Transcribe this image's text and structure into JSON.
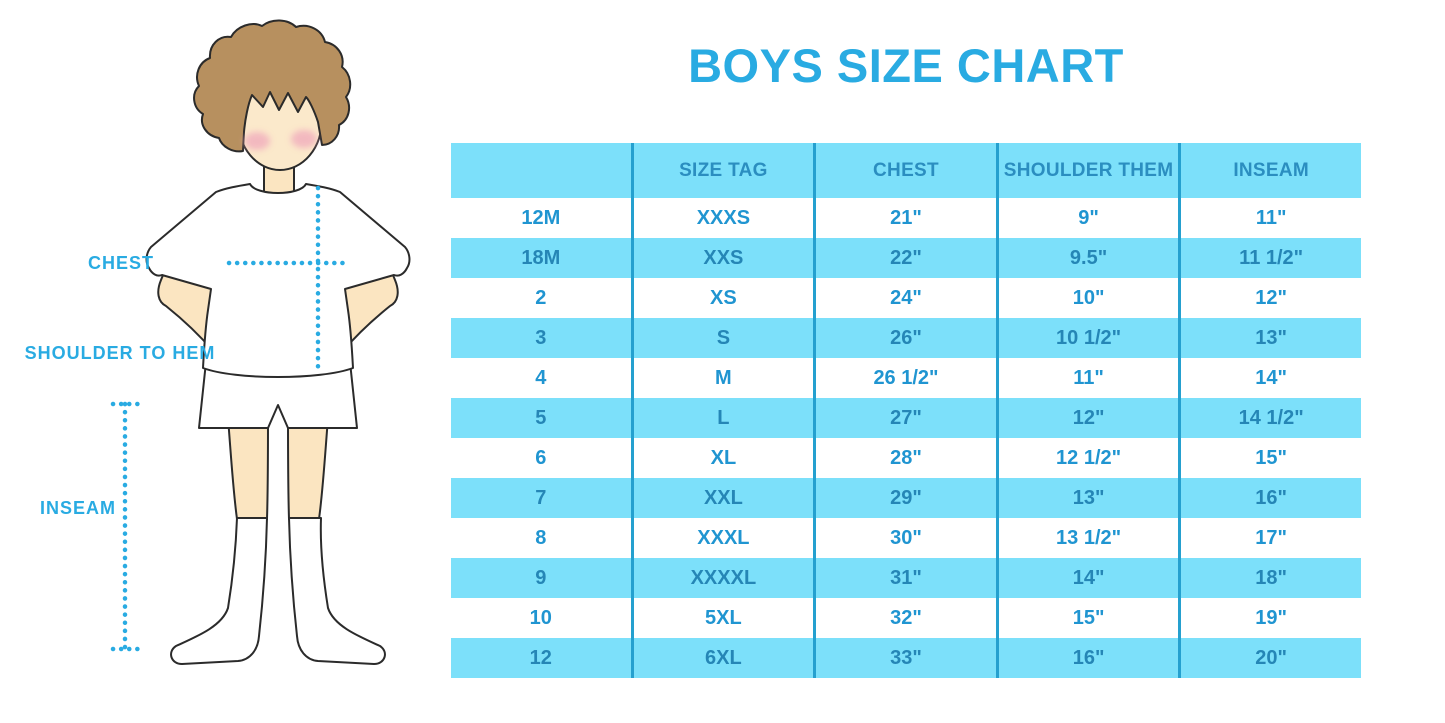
{
  "title": {
    "text": "BOYS SIZE CHART",
    "color": "#29ABE2"
  },
  "diagram": {
    "labels": {
      "chest": "CHEST",
      "shoulder_to_hem": "SHOULDER TO HEM",
      "inseam": "INSEAM"
    },
    "colors": {
      "label_text": "#29ABE2",
      "dotted_line": "#29ABE2",
      "skin": "#FBE5C1",
      "hair": "#B7905F",
      "blush": "#F0A9BC",
      "outline": "#2B2B2B",
      "clothes": "#FFFFFF"
    }
  },
  "chart_data": {
    "type": "table",
    "title": "BOYS SIZE CHART",
    "columns": [
      "",
      "SIZE TAG",
      "CHEST",
      "SHOULDER THEM",
      "INSEAM"
    ],
    "rows": [
      [
        "12M",
        "XXXS",
        "21\"",
        "9\"",
        "11\""
      ],
      [
        "18M",
        "XXS",
        "22\"",
        "9.5\"",
        "11 1/2\""
      ],
      [
        "2",
        "XS",
        "24\"",
        "10\"",
        "12\""
      ],
      [
        "3",
        "S",
        "26\"",
        "10 1/2\"",
        "13\""
      ],
      [
        "4",
        "M",
        "26 1/2\"",
        "11\"",
        "14\""
      ],
      [
        "5",
        "L",
        "27\"",
        "12\"",
        "14 1/2\""
      ],
      [
        "6",
        "XL",
        "28\"",
        "12 1/2\"",
        "15\""
      ],
      [
        "7",
        "XXL",
        "29\"",
        "13\"",
        "16\""
      ],
      [
        "8",
        "XXXL",
        "30\"",
        "13 1/2\"",
        "17\""
      ],
      [
        "9",
        "XXXXL",
        "31\"",
        "14\"",
        "18\""
      ],
      [
        "10",
        "5XL",
        "32\"",
        "15\"",
        "19\""
      ],
      [
        "12",
        "6XL",
        "33\"",
        "16\"",
        "20\""
      ]
    ],
    "layout": {
      "banded_rows": "alternating, first data row white",
      "band_color": "#7CE0FA",
      "header_bg": "#7CE0FA",
      "divider_color": "#25A0CF",
      "header_text_color": "#2B8EC0",
      "row_text_color": "#2095D1",
      "grid": "vertical dividers only"
    }
  }
}
